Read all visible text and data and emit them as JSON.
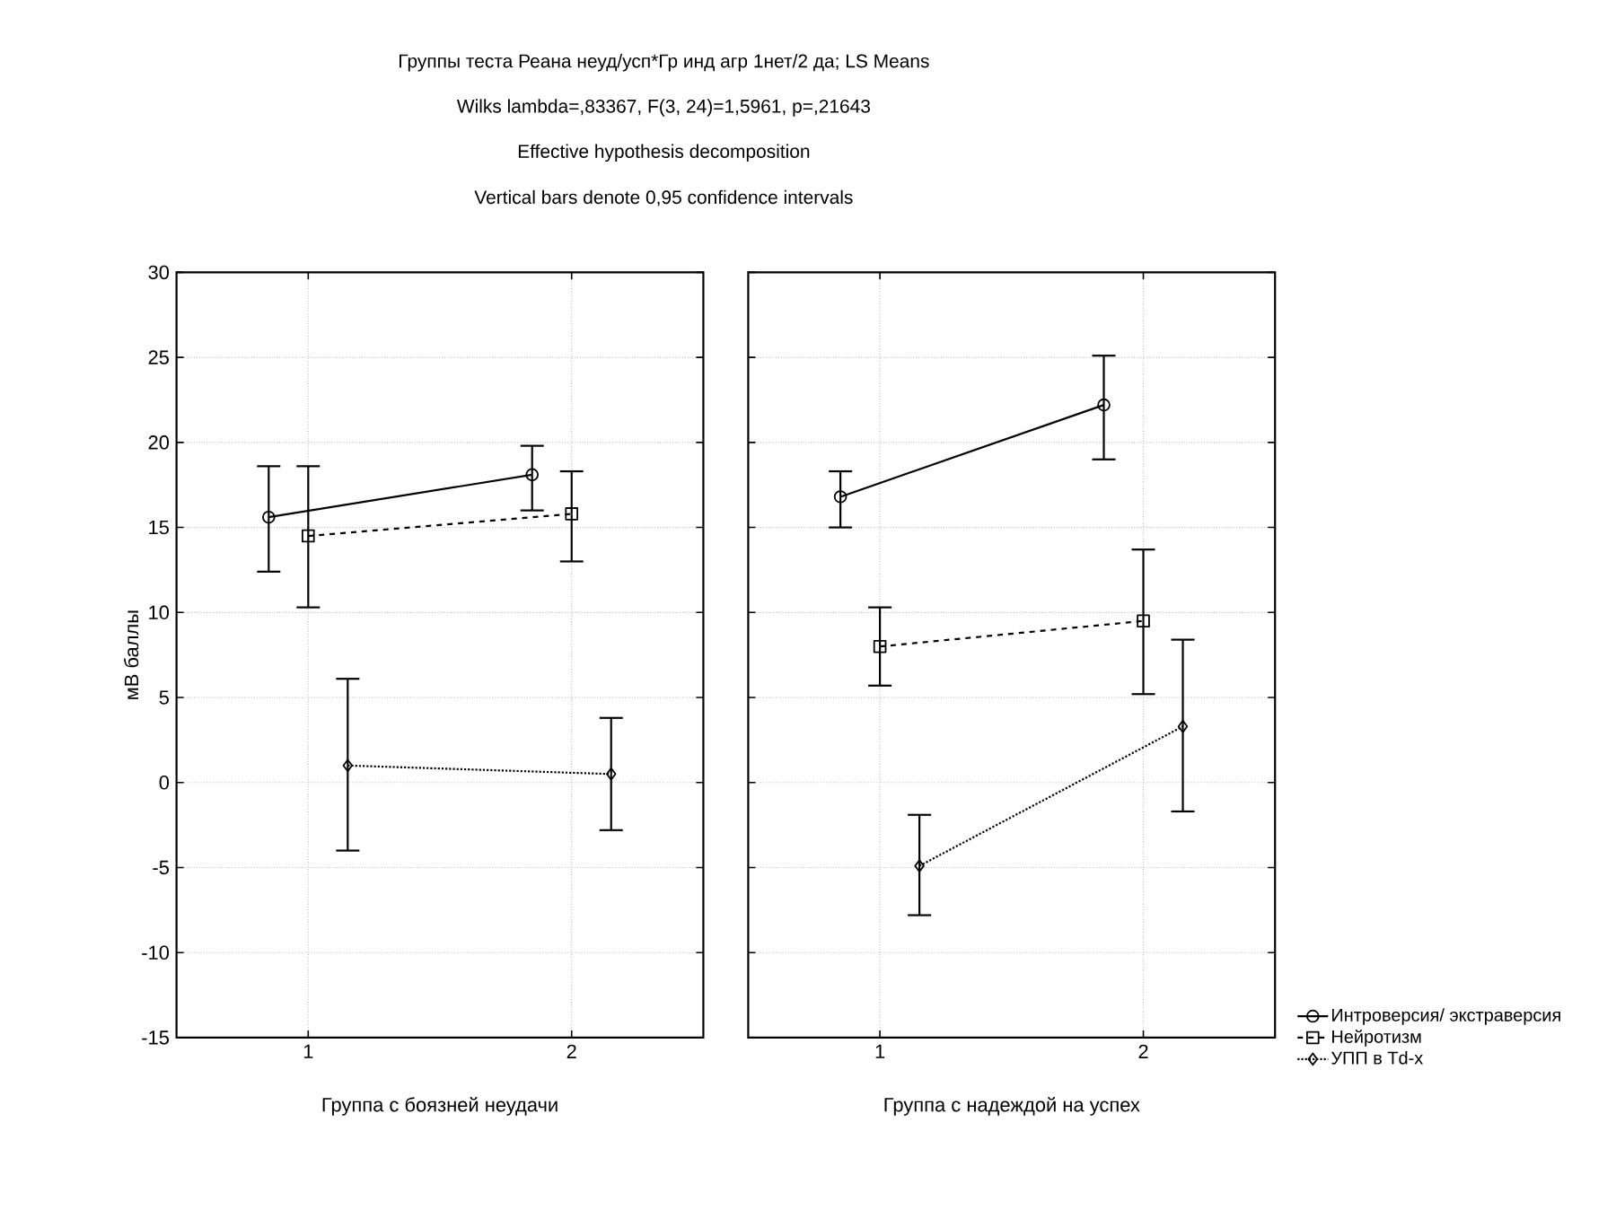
{
  "chart_data": [
    {
      "type": "line",
      "title": "Группы теста Реана неуд/усп*Гр инд агр 1нет/2 да; LS Means",
      "subtitle": "Wilks lambda=,83367, F(3, 24)=1,5961, p=,21643",
      "annotations": [
        "Effective hypothesis decomposition",
        "Vertical bars denote 0,95 confidence intervals"
      ],
      "xlabel": "Группа с боязней неудачи",
      "ylabel": "мВ баллы",
      "xlim": [
        0.5,
        2.5
      ],
      "xticks": [
        1,
        2
      ],
      "ylim": [
        -15,
        30
      ],
      "yticks": [
        -15,
        -10,
        -5,
        0,
        5,
        10,
        15,
        20,
        25,
        30
      ],
      "grid": true,
      "series": [
        {
          "color": "#000000",
          "line_style": "solid",
          "marker": "circle",
          "x": [
            0.85,
            1.85
          ],
          "values": [
            15.6,
            18.1
          ],
          "errors": [
            [
              12.4,
              18.6
            ],
            [
              16.0,
              19.8
            ]
          ]
        },
        {
          "color": "#000000",
          "line_style": "dashed",
          "marker": "square",
          "x": [
            1.0,
            2.0
          ],
          "values": [
            14.5,
            15.8
          ],
          "errors": [
            [
              10.3,
              18.6
            ],
            [
              13.0,
              18.3
            ]
          ]
        },
        {
          "color": "#000000",
          "line_style": "dotted",
          "marker": "diamond",
          "x": [
            1.15,
            2.15
          ],
          "values": [
            1.0,
            0.5
          ],
          "errors": [
            [
              -4.0,
              6.1
            ],
            [
              -2.8,
              3.8
            ]
          ]
        }
      ]
    },
    {
      "type": "line",
      "xlabel": "Группа с надеждой на успех",
      "xlim": [
        0.5,
        2.5
      ],
      "xticks": [
        1,
        2
      ],
      "ylim": [
        -15,
        30
      ],
      "yticks": [
        -15,
        -10,
        -5,
        0,
        5,
        10,
        15,
        20,
        25,
        30
      ],
      "grid": true,
      "tick_labels": "x",
      "legend": "bottom right",
      "series": [
        {
          "name": "Интроверсия/ экстраверсия",
          "color": "#000000",
          "line_style": "solid",
          "marker": "circle",
          "x": [
            0.85,
            1.85
          ],
          "values": [
            16.8,
            22.2
          ],
          "errors": [
            [
              15.0,
              18.3
            ],
            [
              19.0,
              25.1
            ]
          ]
        },
        {
          "name": "Нейротизм",
          "color": "#000000",
          "line_style": "dashed",
          "marker": "square",
          "x": [
            1.0,
            2.0
          ],
          "values": [
            8.0,
            9.5
          ],
          "errors": [
            [
              5.7,
              10.3
            ],
            [
              5.2,
              13.7
            ]
          ]
        },
        {
          "name": "УПП в Td-x",
          "color": "#000000",
          "line_style": "dotted",
          "marker": "diamond",
          "x": [
            1.15,
            2.15
          ],
          "values": [
            -4.9,
            3.3
          ],
          "errors": [
            [
              -7.8,
              -1.9
            ],
            [
              -1.7,
              8.4
            ]
          ]
        }
      ]
    }
  ]
}
